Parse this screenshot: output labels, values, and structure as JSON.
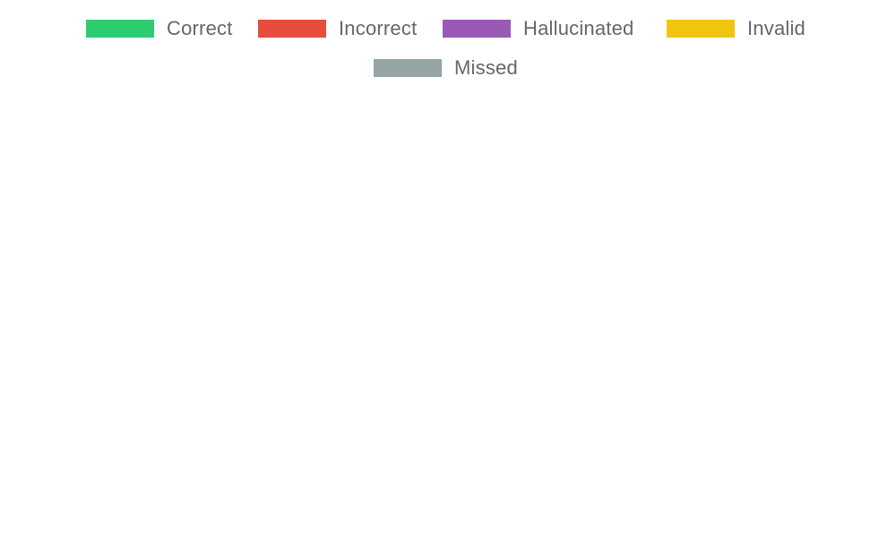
{
  "chart_data": {
    "type": "bar",
    "title": "",
    "xlabel": "",
    "ylabel": "",
    "legend_position": "top-center",
    "grid": false,
    "categories": [],
    "series": [
      {
        "name": "Correct",
        "color": "#2ecc71",
        "values": []
      },
      {
        "name": "Incorrect",
        "color": "#e74c3c",
        "values": []
      },
      {
        "name": "Hallucinated",
        "color": "#9b59b6",
        "values": []
      },
      {
        "name": "Invalid",
        "color": "#f1c40f",
        "values": []
      },
      {
        "name": "Missed",
        "color": "#95a5a6",
        "values": []
      }
    ]
  }
}
